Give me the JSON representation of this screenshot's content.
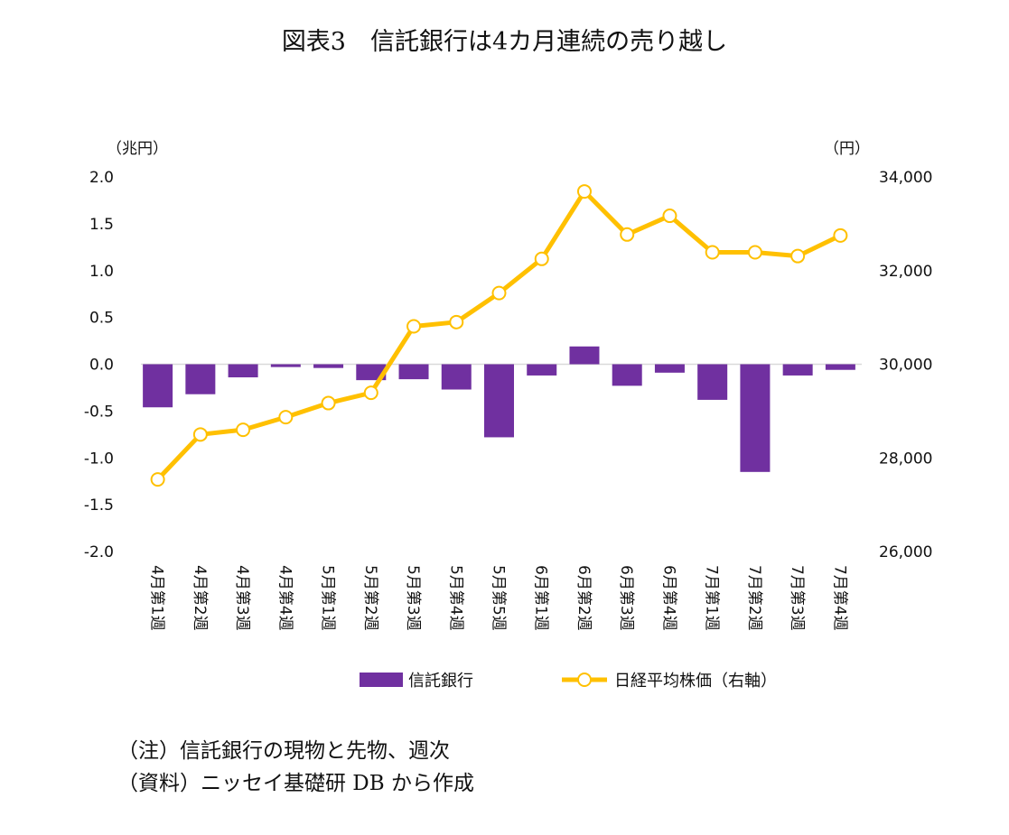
{
  "chart_data": {
    "type": "bar+line",
    "title": "図表3　信託銀行は4カ月連続の売り越し",
    "ylabel_left": "（兆円）",
    "ylabel_right": "（円）",
    "ylim_left": [
      -2.0,
      2.0
    ],
    "ylim_right": [
      26000,
      34000
    ],
    "yticks_left": [
      "2.0",
      "1.5",
      "1.0",
      "0.5",
      "0.0",
      "-0.5",
      "-1.0",
      "-1.5",
      "-2.0"
    ],
    "yticks_right": [
      "34,000",
      "32,000",
      "30,000",
      "28,000",
      "26,000"
    ],
    "grid": false,
    "legend_position": "bottom",
    "categories": [
      "4月第1週",
      "4月第2週",
      "4月第3週",
      "4月第4週",
      "5月第1週",
      "5月第2週",
      "5月第3週",
      "5月第4週",
      "5月第5週",
      "6月第1週",
      "6月第2週",
      "6月第3週",
      "6月第4週",
      "7月第1週",
      "7月第2週",
      "7月第3週",
      "7月第4週"
    ],
    "series": [
      {
        "name": "信託銀行",
        "type": "bar",
        "axis": "left",
        "color": "#7030A0",
        "values": [
          -0.46,
          -0.32,
          -0.14,
          -0.03,
          -0.04,
          -0.17,
          -0.16,
          -0.27,
          -0.78,
          -0.12,
          0.19,
          -0.23,
          -0.09,
          -0.38,
          -1.15,
          -0.12,
          -0.06
        ]
      },
      {
        "name": "日経平均株価（右軸）",
        "type": "line",
        "axis": "right",
        "color": "#FFC000",
        "values": [
          27540,
          28500,
          28600,
          28870,
          29170,
          29390,
          30810,
          30900,
          31520,
          32250,
          33690,
          32770,
          33170,
          32390,
          32390,
          32310,
          32750
        ]
      }
    ]
  },
  "notes": {
    "note1": "（注）信託銀行の現物と先物、週次",
    "note2": "（資料）ニッセイ基礎研 DB から作成"
  }
}
